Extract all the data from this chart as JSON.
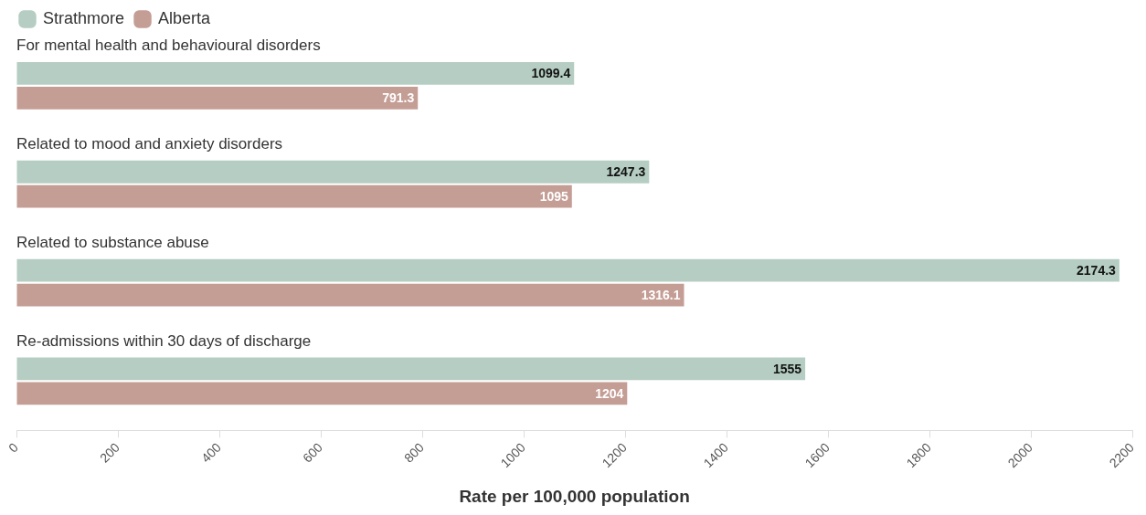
{
  "chart_data": {
    "type": "bar",
    "orientation": "horizontal",
    "xlabel": "Rate per 100,000 population",
    "categories": [
      "For mental health and behavioural disorders",
      "Related to mood and anxiety disorders",
      "Related to substance abuse",
      "Re-admissions within 30 days of discharge"
    ],
    "series": [
      {
        "name": "Strathmore",
        "color": "#b5cdc2",
        "values": [
          1099.4,
          1247.3,
          2174.3,
          1555
        ]
      },
      {
        "name": "Alberta",
        "color": "#c49d95",
        "values": [
          791.3,
          1095,
          1316.1,
          1204
        ]
      }
    ],
    "xlim": [
      0,
      2200
    ],
    "xticks": [
      0,
      200,
      400,
      600,
      800,
      1000,
      1200,
      1400,
      1600,
      1800,
      2000,
      2200
    ],
    "grid": false,
    "legend": "top left",
    "data_labels": true
  }
}
